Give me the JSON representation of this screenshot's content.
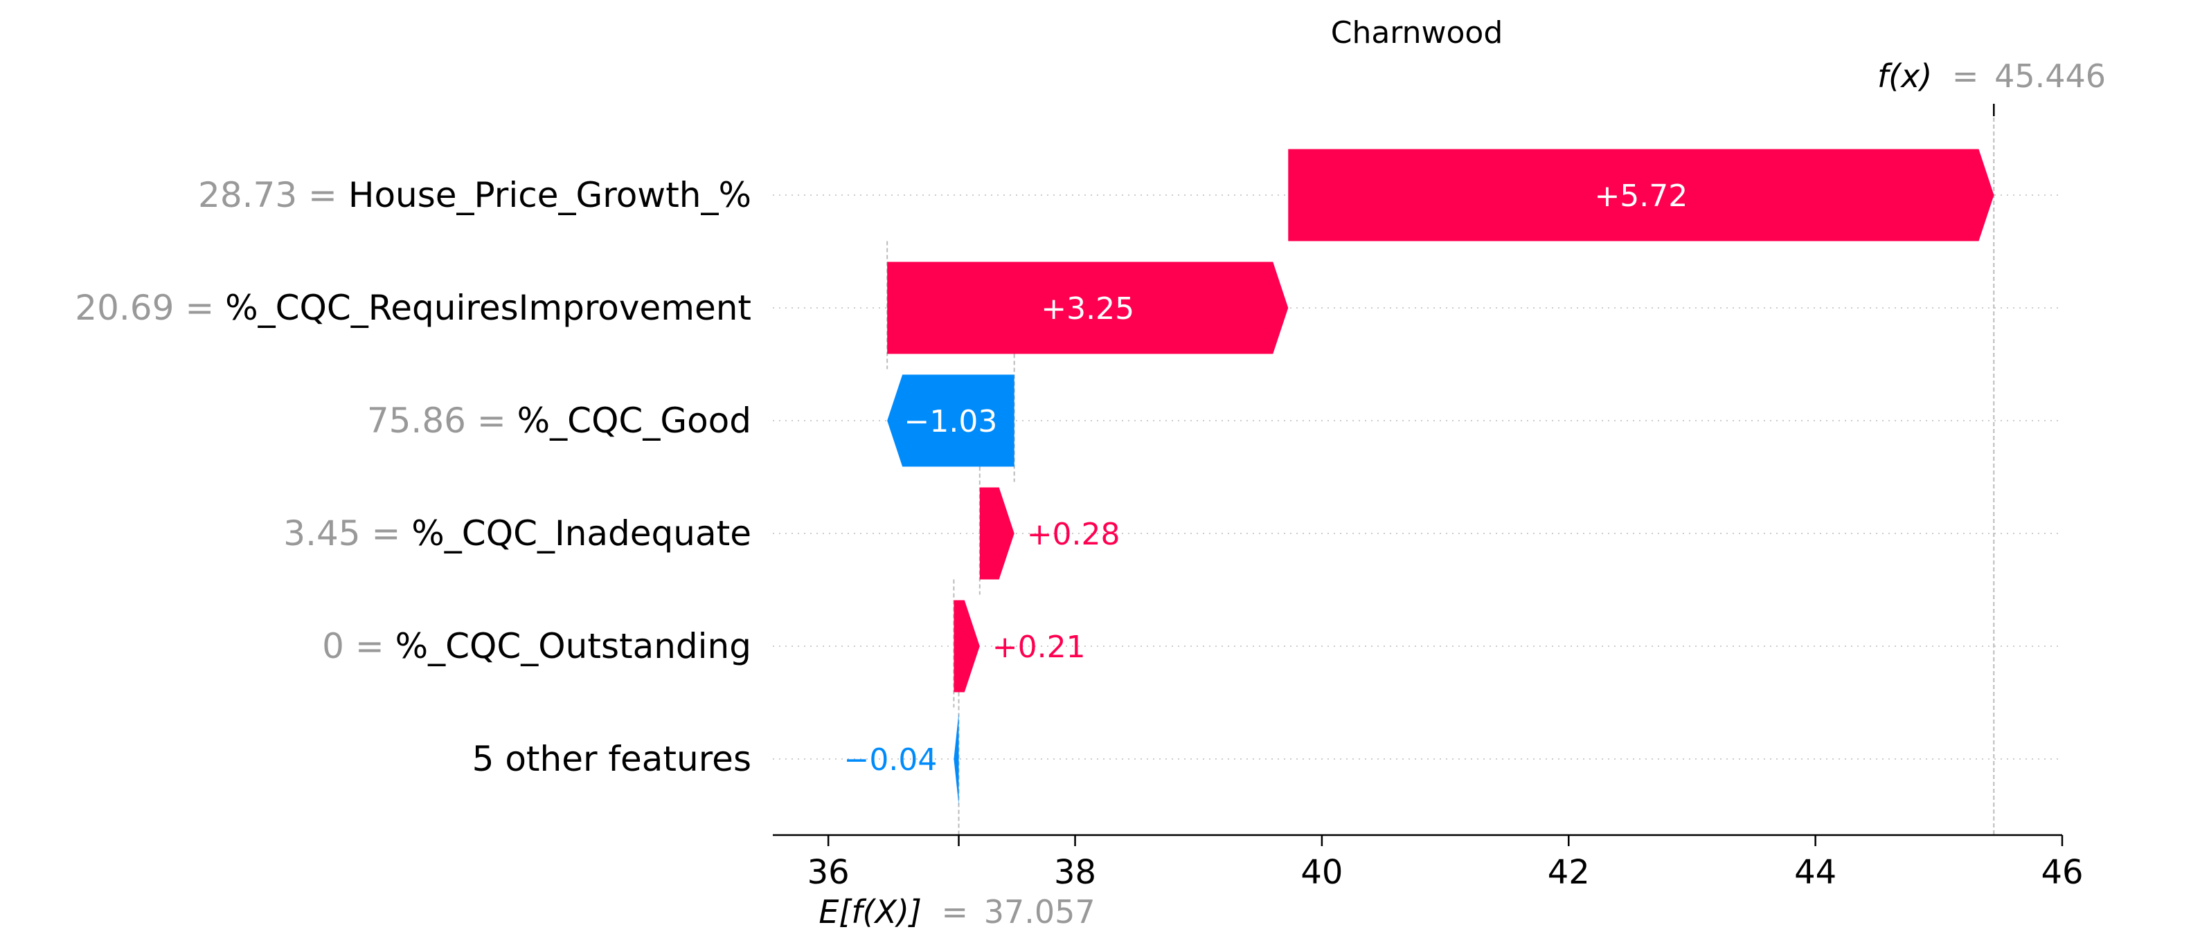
{
  "chart_data": {
    "type": "waterfall",
    "title": "Charnwood",
    "fx_prefix": "f(x)",
    "fx_value": "45.446",
    "ex_prefix": "E[f(X)]",
    "ex_value": "37.057",
    "base_value": 37.057,
    "final_value": 45.446,
    "xlim": [
      35.55,
      46
    ],
    "xticks": [
      36,
      38,
      40,
      42,
      44,
      46
    ],
    "xtick_labels": [
      "36",
      "38",
      "40",
      "42",
      "44",
      "46"
    ],
    "grid": "dotted horizontal lines per row",
    "features": [
      {
        "value_label": "28.73 =",
        "name": "House_Price_Growth_%",
        "contribution": 5.72,
        "label": "+5.72"
      },
      {
        "value_label": "20.69 =",
        "name": "%_CQC_RequiresImprovement",
        "contribution": 3.25,
        "label": "+3.25"
      },
      {
        "value_label": "75.86 =",
        "name": "%_CQC_Good",
        "contribution": -1.03,
        "label": "−1.03"
      },
      {
        "value_label": "3.45 =",
        "name": "%_CQC_Inadequate",
        "contribution": 0.28,
        "label": "+0.28"
      },
      {
        "value_label": "0 =",
        "name": "%_CQC_Outstanding",
        "contribution": 0.21,
        "label": "+0.21"
      },
      {
        "value_label": "",
        "name": "5 other features",
        "contribution": -0.04,
        "label": "−0.04"
      }
    ],
    "colors": {
      "positive": "#ff0051",
      "negative": "#008bfb",
      "axis": "#000000",
      "value_gray": "#999999",
      "grid": "#cccccc",
      "connector": "#bbbbbb"
    }
  }
}
